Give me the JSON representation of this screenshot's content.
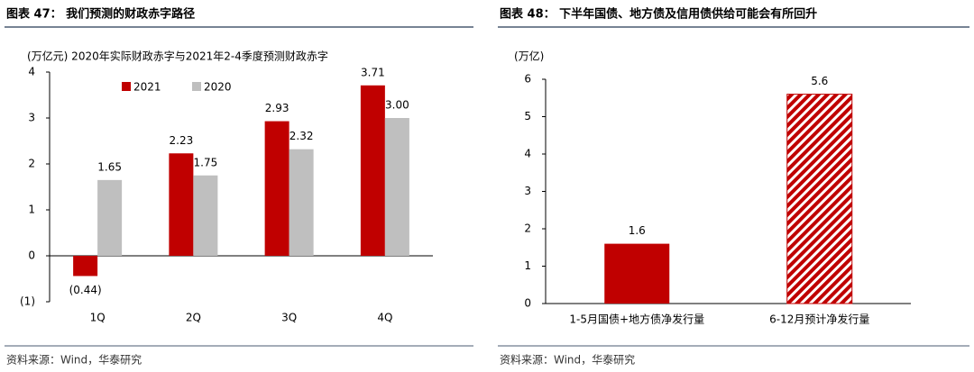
{
  "chart_data": [
    {
      "type": "bar",
      "title": "图表 47：  我们预测的财政赤字路径",
      "subtitle": "(万亿元)   2020年实际财政赤字与2021年2-4季度预测财政赤字",
      "categories": [
        "1Q",
        "2Q",
        "3Q",
        "4Q"
      ],
      "series": [
        {
          "name": "2021",
          "color": "#c00000",
          "values": [
            -0.44,
            2.23,
            2.93,
            3.71
          ],
          "value_labels": [
            "(0.44)",
            "2.23",
            "2.93",
            "3.71"
          ]
        },
        {
          "name": "2020",
          "color": "#bfbfbf",
          "values": [
            1.65,
            1.75,
            2.32,
            3.0
          ],
          "value_labels": [
            "1.65",
            "1.75",
            "2.32",
            "3.00"
          ]
        }
      ],
      "ylim": [
        -1,
        4
      ],
      "yticks": [
        {
          "value": -1,
          "label": "(1)"
        },
        0,
        1,
        2,
        3,
        4
      ],
      "legend": "top-left",
      "source": "资料来源：Wind，华泰研究"
    },
    {
      "type": "bar",
      "title": "图表 48：  下半年国债、地方债及信用债供给可能会有所回升",
      "subtitle": "(万亿)",
      "categories": [
        "1-5月国债+地方债净发行量",
        "6-12月预计净发行量"
      ],
      "values": [
        1.6,
        5.6
      ],
      "color": "#c00000",
      "patterns": [
        "solid",
        "hatch"
      ],
      "ylim": [
        0,
        6
      ],
      "yticks": [
        0,
        1,
        2,
        3,
        4,
        5,
        6
      ],
      "source": "资料来源：Wind，华泰研究"
    }
  ]
}
